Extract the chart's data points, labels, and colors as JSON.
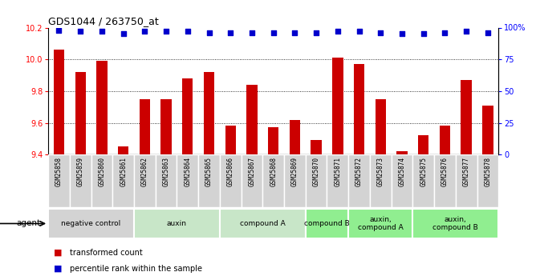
{
  "title": "GDS1044 / 263750_at",
  "samples": [
    "GSM25858",
    "GSM25859",
    "GSM25860",
    "GSM25861",
    "GSM25862",
    "GSM25863",
    "GSM25864",
    "GSM25865",
    "GSM25866",
    "GSM25867",
    "GSM25868",
    "GSM25869",
    "GSM25870",
    "GSM25871",
    "GSM25872",
    "GSM25873",
    "GSM25874",
    "GSM25875",
    "GSM25876",
    "GSM25877",
    "GSM25878"
  ],
  "bar_values": [
    10.06,
    9.92,
    9.99,
    9.45,
    9.75,
    9.75,
    9.88,
    9.92,
    9.58,
    9.84,
    9.57,
    9.62,
    9.49,
    10.01,
    9.97,
    9.75,
    9.42,
    9.52,
    9.58,
    9.87,
    9.71
  ],
  "percentile_values": [
    98,
    97,
    97,
    95,
    97,
    97,
    97,
    96,
    96,
    96,
    96,
    96,
    96,
    97,
    97,
    96,
    95,
    95,
    96,
    97,
    96
  ],
  "ylim_left": [
    9.4,
    10.2
  ],
  "ylim_right": [
    0,
    100
  ],
  "yticks_left": [
    9.4,
    9.6,
    9.8,
    10.0,
    10.2
  ],
  "yticks_right": [
    0,
    25,
    50,
    75,
    100
  ],
  "bar_color": "#cc0000",
  "dot_color": "#0000cc",
  "grid_color": "#000000",
  "agent_groups": [
    {
      "label": "negative control",
      "start": 0,
      "end": 3,
      "color": "#d3d3d3"
    },
    {
      "label": "auxin",
      "start": 4,
      "end": 7,
      "color": "#c8e6c8"
    },
    {
      "label": "compound A",
      "start": 8,
      "end": 11,
      "color": "#c8e6c8"
    },
    {
      "label": "compound B",
      "start": 12,
      "end": 13,
      "color": "#90ee90"
    },
    {
      "label": "auxin,\ncompound A",
      "start": 14,
      "end": 16,
      "color": "#90ee90"
    },
    {
      "label": "auxin,\ncompound B",
      "start": 17,
      "end": 20,
      "color": "#90ee90"
    }
  ],
  "legend_bar_label": "transformed count",
  "legend_dot_label": "percentile rank within the sample",
  "agent_label": "agent",
  "background_color": "#ffffff",
  "plot_bg_color": "#ffffff",
  "tick_box_color": "#d3d3d3"
}
